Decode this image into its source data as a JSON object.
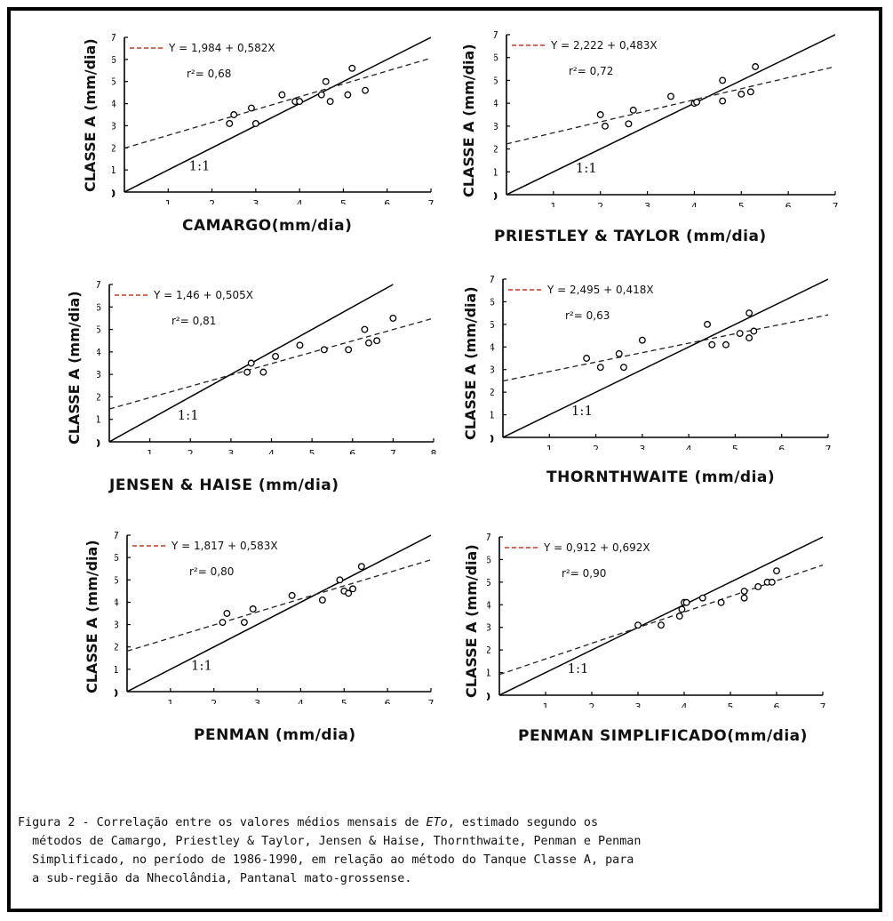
{
  "caption": {
    "prefix": "Figura 2 - Correlação entre os valores médios mensais de ",
    "italic": "ETo",
    "suffix": ", estimado segundo os\n  métodos de Camargo, Priestley & Taylor, Jensen & Haise, Thornthwaite, Penman e Penman\n  Simplificado, no período de 1986-1990, em relação ao método do Tanque Classe A, para\n  a sub-região da Nhecolândia, Pantanal mato-grossense."
  },
  "chart_data": [
    {
      "type": "scatter",
      "xlabel": "CAMARGO(mm/dia)",
      "ylabel": "CLASSE A (mm/dia)",
      "xlim": [
        0,
        7
      ],
      "ylim": [
        0,
        7
      ],
      "x_ticks": [
        "1",
        "2",
        "3",
        "4",
        "5",
        "6",
        "7"
      ],
      "y_ticks": [
        "1",
        "2",
        "3",
        "4",
        "5",
        "6",
        "7"
      ],
      "origin_label": "0",
      "equation": "Y = 1,984 + 0,582X",
      "r2_label": "r²= 0,68",
      "identity_label": "1:1",
      "fit": {
        "intercept": 1.984,
        "slope": 0.582
      },
      "points": [
        [
          2.4,
          3.1
        ],
        [
          2.5,
          3.5
        ],
        [
          2.9,
          3.8
        ],
        [
          3.0,
          3.1
        ],
        [
          3.6,
          4.4
        ],
        [
          3.9,
          4.1
        ],
        [
          4.0,
          4.1
        ],
        [
          4.5,
          4.4
        ],
        [
          4.6,
          5.0
        ],
        [
          4.7,
          4.1
        ],
        [
          5.1,
          4.4
        ],
        [
          5.2,
          5.6
        ],
        [
          5.5,
          4.6
        ]
      ]
    },
    {
      "type": "scatter",
      "xlabel": "PRIESTLEY & TAYLOR (mm/dia)",
      "ylabel": "CLASSE A (mm/dia)",
      "xlim": [
        0,
        7
      ],
      "ylim": [
        0,
        7
      ],
      "x_ticks": [
        "1",
        "2",
        "3",
        "4",
        "5",
        "6",
        "7"
      ],
      "y_ticks": [
        "1",
        "2",
        "3",
        "4",
        "5",
        "6",
        "7"
      ],
      "origin_label": "0",
      "equation": "Y = 2,222 + 0,483X",
      "r2_label": "r²= 0,72",
      "identity_label": "1:1",
      "fit": {
        "intercept": 2.222,
        "slope": 0.483
      },
      "points": [
        [
          2.0,
          3.5
        ],
        [
          2.1,
          3.0
        ],
        [
          2.6,
          3.1
        ],
        [
          2.7,
          3.7
        ],
        [
          3.5,
          4.3
        ],
        [
          4.0,
          4.0
        ],
        [
          4.05,
          4.05
        ],
        [
          4.6,
          4.1
        ],
        [
          4.6,
          5.0
        ],
        [
          5.0,
          4.4
        ],
        [
          5.2,
          4.5
        ],
        [
          5.3,
          5.6
        ]
      ]
    },
    {
      "type": "scatter",
      "xlabel": "JENSEN & HAISE (mm/dia)",
      "ylabel": "CLASSE A (mm/dia)",
      "xlim": [
        0,
        8
      ],
      "ylim": [
        0,
        7
      ],
      "x_ticks": [
        "1",
        "2",
        "3",
        "4",
        "5",
        "6",
        "7",
        "8"
      ],
      "y_ticks": [
        "1",
        "2",
        "3",
        "4",
        "5",
        "6",
        "7"
      ],
      "origin_label": "0",
      "equation": "Y = 1,46 + 0,505X",
      "r2_label": "r²= 0,81",
      "identity_label": "1:1",
      "fit": {
        "intercept": 1.46,
        "slope": 0.505
      },
      "points": [
        [
          3.4,
          3.1
        ],
        [
          3.5,
          3.5
        ],
        [
          3.8,
          3.1
        ],
        [
          4.1,
          3.8
        ],
        [
          4.7,
          4.3
        ],
        [
          5.3,
          4.1
        ],
        [
          5.9,
          4.1
        ],
        [
          6.3,
          5.0
        ],
        [
          6.4,
          4.4
        ],
        [
          6.6,
          4.5
        ],
        [
          7.0,
          5.5
        ]
      ]
    },
    {
      "type": "scatter",
      "xlabel": "THORNTHWAITE (mm/dia)",
      "ylabel": "CLASSE A (mm/dia)",
      "xlim": [
        0,
        7
      ],
      "ylim": [
        0,
        7
      ],
      "x_ticks": [
        "1",
        "2",
        "3",
        "4",
        "5",
        "6",
        "7"
      ],
      "y_ticks": [
        "1",
        "2",
        "3",
        "4",
        "5",
        "6",
        "7"
      ],
      "origin_label": "0",
      "equation": "Y = 2,495 + 0,418X",
      "r2_label": "r²= 0,63",
      "identity_label": "1:1",
      "fit": {
        "intercept": 2.495,
        "slope": 0.418
      },
      "points": [
        [
          1.8,
          3.5
        ],
        [
          2.1,
          3.1
        ],
        [
          2.5,
          3.7
        ],
        [
          2.6,
          3.1
        ],
        [
          3.0,
          4.3
        ],
        [
          4.4,
          5.0
        ],
        [
          4.5,
          4.1
        ],
        [
          4.8,
          4.1
        ],
        [
          5.1,
          4.6
        ],
        [
          5.3,
          4.4
        ],
        [
          5.3,
          5.5
        ],
        [
          5.4,
          4.7
        ]
      ]
    },
    {
      "type": "scatter",
      "xlabel": "PENMAN (mm/dia)",
      "ylabel": "CLASSE A (mm/dia)",
      "xlim": [
        0,
        7
      ],
      "ylim": [
        0,
        7
      ],
      "x_ticks": [
        "1",
        "2",
        "3",
        "4",
        "5",
        "6",
        "7"
      ],
      "y_ticks": [
        "1",
        "2",
        "3",
        "4",
        "5",
        "6",
        "7"
      ],
      "origin_label": "0",
      "equation": "Y = 1,817 + 0,583X",
      "r2_label": "r²= 0,80",
      "identity_label": "1:1",
      "fit": {
        "intercept": 1.817,
        "slope": 0.583
      },
      "points": [
        [
          2.2,
          3.1
        ],
        [
          2.3,
          3.5
        ],
        [
          2.7,
          3.1
        ],
        [
          2.9,
          3.7
        ],
        [
          3.8,
          4.3
        ],
        [
          4.5,
          4.1
        ],
        [
          4.9,
          5.0
        ],
        [
          5.0,
          4.5
        ],
        [
          5.1,
          4.4
        ],
        [
          5.2,
          4.6
        ],
        [
          5.4,
          5.6
        ]
      ]
    },
    {
      "type": "scatter",
      "xlabel": "PENMAN SIMPLIFICADO(mm/dia)",
      "ylabel": "CLASSE A (mm/dia)",
      "xlim": [
        0,
        7
      ],
      "ylim": [
        0,
        7
      ],
      "x_ticks": [
        "1",
        "2",
        "3",
        "4",
        "5",
        "6",
        "7"
      ],
      "y_ticks": [
        "1",
        "2",
        "3",
        "4",
        "5",
        "6",
        "7"
      ],
      "origin_label": "0",
      "equation": "Y = 0,912 + 0,692X",
      "r2_label": "r²= 0,90",
      "identity_label": "1:1",
      "fit": {
        "intercept": 0.912,
        "slope": 0.692
      },
      "points": [
        [
          3.0,
          3.1
        ],
        [
          3.5,
          3.1
        ],
        [
          3.9,
          3.5
        ],
        [
          3.95,
          3.8
        ],
        [
          4.0,
          4.1
        ],
        [
          4.05,
          4.1
        ],
        [
          4.4,
          4.3
        ],
        [
          4.8,
          4.1
        ],
        [
          5.3,
          4.3
        ],
        [
          5.3,
          4.6
        ],
        [
          5.6,
          4.8
        ],
        [
          5.8,
          5.0
        ],
        [
          5.9,
          5.0
        ],
        [
          6.0,
          5.5
        ]
      ]
    }
  ]
}
